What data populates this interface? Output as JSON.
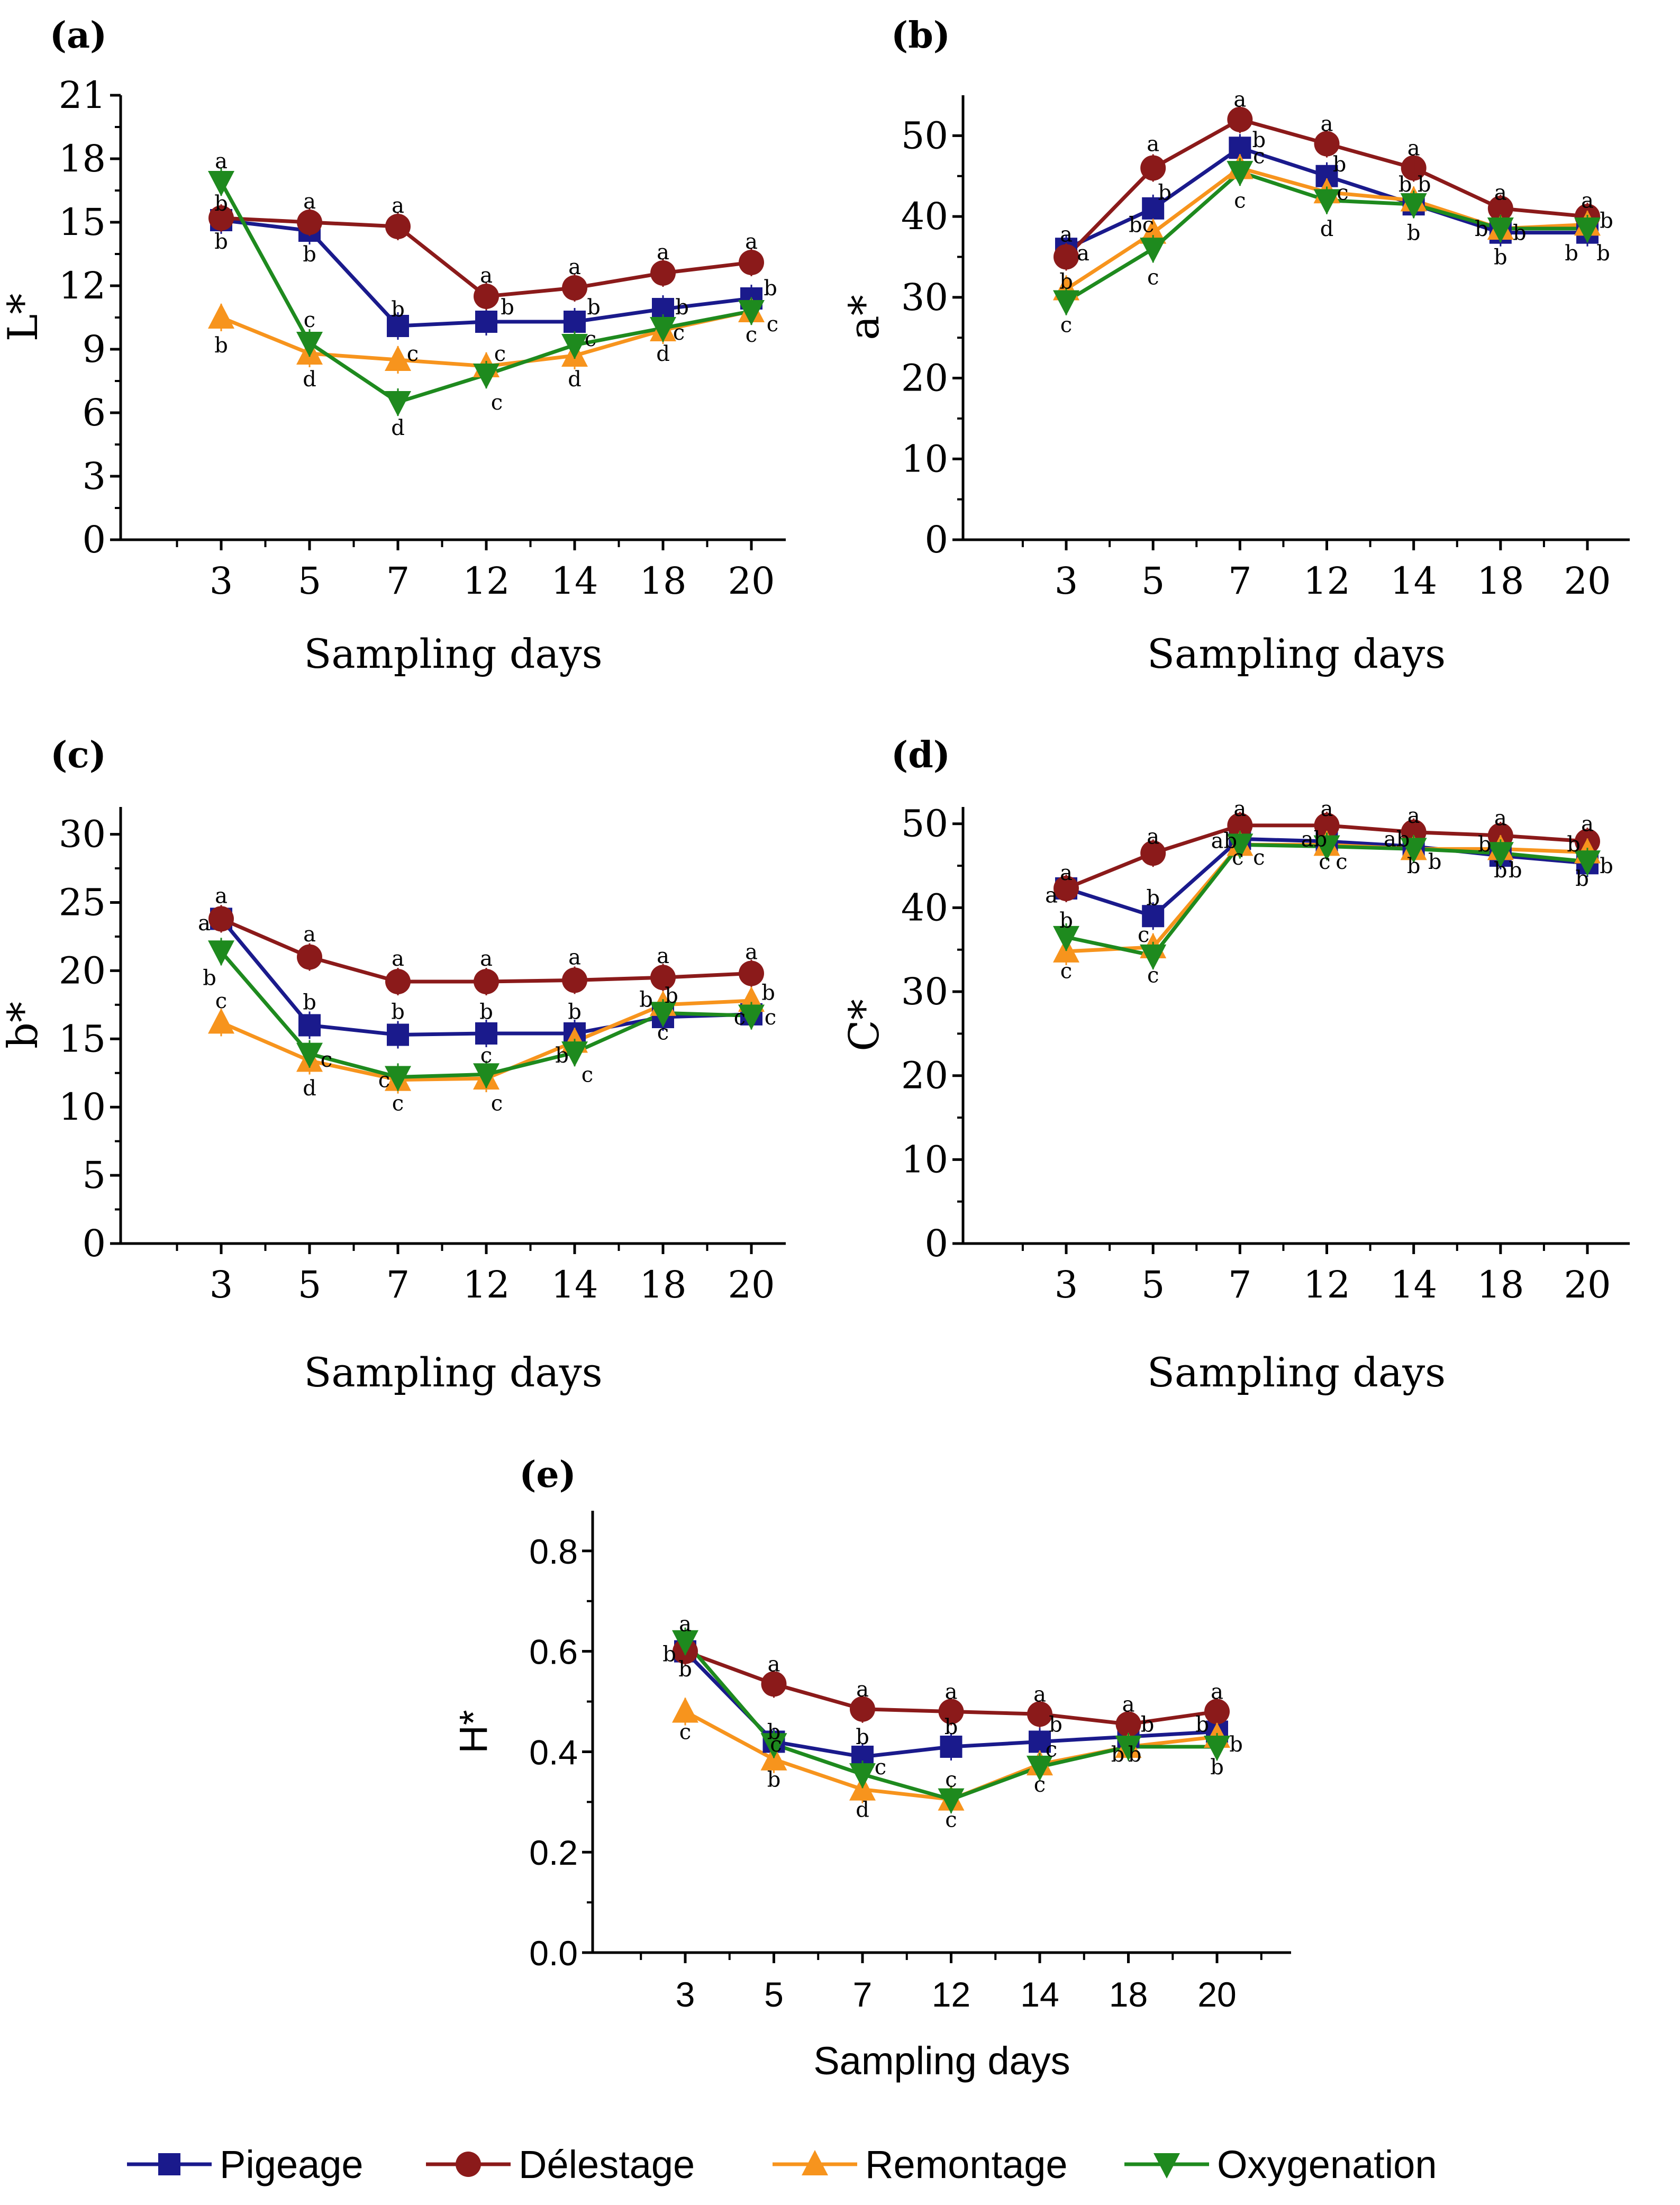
{
  "colors": {
    "Pigeage": "#1a1a8c",
    "Délestage": "#8b1a1a",
    "Remontage": "#f7941d",
    "Oxygenation": "#1e8a1e",
    "axis": "#000000"
  },
  "markers": {
    "Pigeage": "square",
    "Délestage": "circle",
    "Remontage": "triangle-up",
    "Oxygenation": "triangle-down"
  },
  "legend": [
    {
      "name": "Pigeage"
    },
    {
      "name": "Délestage"
    },
    {
      "name": "Remontage"
    },
    {
      "name": "Oxygenation"
    }
  ],
  "chart_data": [
    {
      "type": "line",
      "tag": "(a)",
      "ylabel": "L*",
      "xlabel": "Sampling days",
      "categories": [
        "3",
        "5",
        "7",
        "12",
        "14",
        "18",
        "20"
      ],
      "ylim": [
        0,
        21
      ],
      "yticks": [
        "0",
        "3",
        "6",
        "9",
        "12",
        "15",
        "18",
        "21"
      ],
      "series": [
        {
          "name": "Pigeage",
          "values": [
            15.1,
            14.6,
            10.1,
            10.3,
            10.3,
            10.9,
            11.4
          ]
        },
        {
          "name": "Délestage",
          "values": [
            15.2,
            15.0,
            14.8,
            11.5,
            11.9,
            12.6,
            13.1
          ]
        },
        {
          "name": "Remontage",
          "values": [
            10.5,
            8.8,
            8.5,
            8.2,
            8.7,
            9.9,
            10.8
          ]
        },
        {
          "name": "Oxygenation",
          "values": [
            16.9,
            9.3,
            6.5,
            7.8,
            9.2,
            10.0,
            10.8
          ]
        }
      ],
      "annotations": [
        {
          "text": "a",
          "i": 0,
          "v": 17.9
        },
        {
          "text": "b",
          "i": 0,
          "v": 15.9
        },
        {
          "text": "b",
          "i": 0,
          "v": 14.1
        },
        {
          "text": "b",
          "i": 0,
          "v": 9.2
        },
        {
          "text": "a",
          "i": 1,
          "v": 16.0
        },
        {
          "text": "b",
          "i": 1,
          "v": 13.5
        },
        {
          "text": "c",
          "i": 1,
          "v": 10.4
        },
        {
          "text": "d",
          "i": 1,
          "v": 7.6
        },
        {
          "text": "a",
          "i": 2,
          "v": 15.8
        },
        {
          "text": "b",
          "i": 2,
          "v": 10.9,
          "dx": 0
        },
        {
          "text": "c",
          "i": 2,
          "v": 8.8,
          "dx": 28
        },
        {
          "text": "d",
          "i": 2,
          "v": 5.3
        },
        {
          "text": "a",
          "i": 3,
          "v": 12.5
        },
        {
          "text": "b",
          "i": 3,
          "v": 11.0,
          "dx": 40
        },
        {
          "text": "c",
          "i": 3,
          "v": 8.8,
          "dx": 26
        },
        {
          "text": "c",
          "i": 3,
          "v": 6.5,
          "dx": 20
        },
        {
          "text": "a",
          "i": 4,
          "v": 12.9
        },
        {
          "text": "b",
          "i": 4,
          "v": 11.0,
          "dx": 36
        },
        {
          "text": "c",
          "i": 4,
          "v": 9.5,
          "dx": 30
        },
        {
          "text": "d",
          "i": 4,
          "v": 7.6
        },
        {
          "text": "a",
          "i": 5,
          "v": 13.6
        },
        {
          "text": "b",
          "i": 5,
          "v": 11.0,
          "dx": 36
        },
        {
          "text": "c",
          "i": 5,
          "v": 9.8,
          "dx": 30
        },
        {
          "text": "d",
          "i": 5,
          "v": 8.8
        },
        {
          "text": "a",
          "i": 6,
          "v": 14.1
        },
        {
          "text": "b",
          "i": 6,
          "v": 11.9,
          "dx": 36
        },
        {
          "text": "c",
          "i": 6,
          "v": 10.2,
          "dx": 40
        },
        {
          "text": "c",
          "i": 6,
          "v": 9.7
        }
      ]
    },
    {
      "type": "line",
      "tag": "(b)",
      "ylabel": "a*",
      "xlabel": "Sampling days",
      "categories": [
        "3",
        "5",
        "7",
        "12",
        "14",
        "18",
        "20"
      ],
      "ylim": [
        0,
        55
      ],
      "yticks": [
        "0",
        "10",
        "20",
        "30",
        "40",
        "50"
      ],
      "series": [
        {
          "name": "Pigeage",
          "values": [
            36.0,
            41.0,
            48.5,
            45.0,
            41.5,
            38.0,
            38.0
          ]
        },
        {
          "name": "Délestage",
          "values": [
            35.0,
            46.0,
            52.0,
            49.0,
            46.0,
            41.0,
            40.0
          ]
        },
        {
          "name": "Remontage",
          "values": [
            31.0,
            38.0,
            46.0,
            43.0,
            42.0,
            38.5,
            39.0
          ]
        },
        {
          "name": "Oxygenation",
          "values": [
            29.5,
            36.0,
            45.5,
            42.0,
            41.5,
            38.5,
            38.5
          ]
        }
      ],
      "annotations": [
        {
          "text": "a",
          "i": 0,
          "v": 37.8
        },
        {
          "text": "a",
          "i": 0,
          "v": 35.5,
          "dx": 32
        },
        {
          "text": "b",
          "i": 0,
          "v": 32.0
        },
        {
          "text": "c",
          "i": 0,
          "v": 26.6
        },
        {
          "text": "a",
          "i": 1,
          "v": 49.0
        },
        {
          "text": "b",
          "i": 1,
          "v": 43.0,
          "dx": 22
        },
        {
          "text": "bc",
          "i": 1,
          "v": 39.0,
          "dx": -22
        },
        {
          "text": "c",
          "i": 1,
          "v": 32.5
        },
        {
          "text": "a",
          "i": 2,
          "v": 54.5
        },
        {
          "text": "b",
          "i": 2,
          "v": 49.5,
          "dx": 36
        },
        {
          "text": "c",
          "i": 2,
          "v": 47.5,
          "dx": 36
        },
        {
          "text": "c",
          "i": 2,
          "v": 42.0
        },
        {
          "text": "a",
          "i": 3,
          "v": 51.5
        },
        {
          "text": "b",
          "i": 3,
          "v": 46.5,
          "dx": 24
        },
        {
          "text": "c",
          "i": 3,
          "v": 43.0,
          "dx": 30
        },
        {
          "text": "d",
          "i": 3,
          "v": 38.5
        },
        {
          "text": "a",
          "i": 4,
          "v": 48.5
        },
        {
          "text": "b",
          "i": 4,
          "v": 44.0,
          "dx": -16
        },
        {
          "text": "b",
          "i": 4,
          "v": 44.0,
          "dx": 20
        },
        {
          "text": "b",
          "i": 4,
          "v": 38.0
        },
        {
          "text": "a",
          "i": 5,
          "v": 43.0
        },
        {
          "text": "b",
          "i": 5,
          "v": 38.5,
          "dx": -36
        },
        {
          "text": "b",
          "i": 5,
          "v": 38.0,
          "dx": 36
        },
        {
          "text": "b",
          "i": 5,
          "v": 35.0
        },
        {
          "text": "a",
          "i": 6,
          "v": 42.0
        },
        {
          "text": "b",
          "i": 6,
          "v": 39.5,
          "dx": 36
        },
        {
          "text": "b",
          "i": 6,
          "v": 35.5,
          "dx": -30
        },
        {
          "text": "b",
          "i": 6,
          "v": 35.5,
          "dx": 30
        }
      ]
    },
    {
      "type": "line",
      "tag": "(c)",
      "ylabel": "b*",
      "xlabel": "Sampling days",
      "categories": [
        "3",
        "5",
        "7",
        "12",
        "14",
        "18",
        "20"
      ],
      "ylim": [
        0,
        32
      ],
      "yticks": [
        "0",
        "5",
        "10",
        "15",
        "20",
        "25",
        "30"
      ],
      "series": [
        {
          "name": "Pigeage",
          "values": [
            23.8,
            16.0,
            15.3,
            15.4,
            15.4,
            16.6,
            16.8
          ]
        },
        {
          "name": "Délestage",
          "values": [
            23.8,
            21.0,
            19.2,
            19.2,
            19.3,
            19.5,
            19.8
          ]
        },
        {
          "name": "Remontage",
          "values": [
            16.2,
            13.4,
            12.0,
            12.1,
            14.8,
            17.5,
            17.8
          ]
        },
        {
          "name": "Oxygenation",
          "values": [
            21.4,
            13.9,
            12.2,
            12.4,
            14.0,
            16.9,
            16.7
          ]
        }
      ],
      "annotations": [
        {
          "text": "a",
          "i": 0,
          "v": 25.5
        },
        {
          "text": "a",
          "i": 0,
          "v": 23.5,
          "dx": -32
        },
        {
          "text": "c",
          "i": 0,
          "v": 17.8
        },
        {
          "text": "b",
          "i": 0,
          "v": 19.5,
          "dx": -22
        },
        {
          "text": "a",
          "i": 1,
          "v": 22.7
        },
        {
          "text": "b",
          "i": 1,
          "v": 17.7
        },
        {
          "text": "c",
          "i": 1,
          "v": 13.5,
          "dx": 32
        },
        {
          "text": "d",
          "i": 1,
          "v": 11.4
        },
        {
          "text": "a",
          "i": 2,
          "v": 20.9
        },
        {
          "text": "b",
          "i": 2,
          "v": 17.0
        },
        {
          "text": "c",
          "i": 2,
          "v": 10.3
        },
        {
          "text": "c",
          "i": 2,
          "v": 12.0,
          "dx": -26
        },
        {
          "text": "a",
          "i": 3,
          "v": 20.9
        },
        {
          "text": "b",
          "i": 3,
          "v": 17.0
        },
        {
          "text": "c",
          "i": 3,
          "v": 13.8
        },
        {
          "text": "c",
          "i": 3,
          "v": 10.3,
          "dx": 20
        },
        {
          "text": "a",
          "i": 4,
          "v": 21.0
        },
        {
          "text": "b",
          "i": 4,
          "v": 17.0
        },
        {
          "text": "b",
          "i": 4,
          "v": 13.8,
          "dx": -24
        },
        {
          "text": "c",
          "i": 4,
          "v": 12.4,
          "dx": 24
        },
        {
          "text": "a",
          "i": 5,
          "v": 21.1
        },
        {
          "text": "b",
          "i": 5,
          "v": 17.9,
          "dx": -32
        },
        {
          "text": "b",
          "i": 5,
          "v": 18.2,
          "dx": 16
        },
        {
          "text": "c",
          "i": 5,
          "v": 15.5
        },
        {
          "text": "a",
          "i": 6,
          "v": 21.4
        },
        {
          "text": "b",
          "i": 6,
          "v": 18.4,
          "dx": 32
        },
        {
          "text": "c",
          "i": 6,
          "v": 16.6,
          "dx": -22
        },
        {
          "text": "c",
          "i": 6,
          "v": 16.6,
          "dx": 36
        }
      ]
    },
    {
      "type": "line",
      "tag": "(d)",
      "ylabel": "C*",
      "xlabel": "Sampling days",
      "categories": [
        "3",
        "5",
        "7",
        "12",
        "14",
        "18",
        "20"
      ],
      "ylim": [
        0,
        52
      ],
      "yticks": [
        "0",
        "10",
        "20",
        "30",
        "40",
        "50"
      ],
      "series": [
        {
          "name": "Pigeage",
          "values": [
            42.3,
            39.0,
            48.2,
            47.9,
            47.3,
            46.2,
            45.3
          ]
        },
        {
          "name": "Délestage",
          "values": [
            42.3,
            46.5,
            49.8,
            49.8,
            49.0,
            48.6,
            47.9
          ]
        },
        {
          "name": "Remontage",
          "values": [
            34.8,
            35.3,
            47.5,
            47.5,
            47.0,
            47.0,
            46.6
          ]
        },
        {
          "name": "Oxygenation",
          "values": [
            36.5,
            34.3,
            47.5,
            47.3,
            47.0,
            46.5,
            45.5
          ]
        }
      ],
      "annotations": [
        {
          "text": "a",
          "i": 0,
          "v": 44.2
        },
        {
          "text": "a",
          "i": 0,
          "v": 41.5,
          "dx": -28
        },
        {
          "text": "b",
          "i": 0,
          "v": 38.5
        },
        {
          "text": "c",
          "i": 0,
          "v": 32.5
        },
        {
          "text": "a",
          "i": 1,
          "v": 48.5
        },
        {
          "text": "b",
          "i": 1,
          "v": 41.2
        },
        {
          "text": "c",
          "i": 1,
          "v": 36.8,
          "dx": -18
        },
        {
          "text": "c",
          "i": 1,
          "v": 32.0
        },
        {
          "text": "a",
          "i": 2,
          "v": 51.8
        },
        {
          "text": "ab",
          "i": 2,
          "v": 48.0,
          "dx": -30
        },
        {
          "text": "c",
          "i": 2,
          "v": 46.0,
          "dx": -4
        },
        {
          "text": "c",
          "i": 2,
          "v": 46.0,
          "dx": 36
        },
        {
          "text": "a",
          "i": 3,
          "v": 51.8
        },
        {
          "text": "ab",
          "i": 3,
          "v": 48.2,
          "dx": -24
        },
        {
          "text": "c",
          "i": 3,
          "v": 45.5,
          "dx": -4
        },
        {
          "text": "c",
          "i": 3,
          "v": 45.5,
          "dx": 28
        },
        {
          "text": "a",
          "i": 4,
          "v": 51.0
        },
        {
          "text": "ab",
          "i": 4,
          "v": 48.2,
          "dx": -32
        },
        {
          "text": "b",
          "i": 4,
          "v": 45.0
        },
        {
          "text": "b",
          "i": 4,
          "v": 45.5,
          "dx": 40
        },
        {
          "text": "a",
          "i": 5,
          "v": 50.7
        },
        {
          "text": "b",
          "i": 5,
          "v": 47.6,
          "dx": -30
        },
        {
          "text": "b",
          "i": 5,
          "v": 44.5,
          "dx": 0
        },
        {
          "text": "b",
          "i": 5,
          "v": 44.5,
          "dx": 28
        },
        {
          "text": "a",
          "i": 6,
          "v": 50.0
        },
        {
          "text": "b",
          "i": 6,
          "v": 47.6,
          "dx": -26
        },
        {
          "text": "b",
          "i": 6,
          "v": 43.5,
          "dx": -10
        },
        {
          "text": "b",
          "i": 6,
          "v": 45.0,
          "dx": 36
        }
      ]
    },
    {
      "type": "line",
      "tag": "(e)",
      "ylabel": "H*",
      "xlabel": "Sampling days",
      "categories": [
        "3",
        "5",
        "7",
        "12",
        "14",
        "18",
        "20"
      ],
      "ylim": [
        0,
        0.88
      ],
      "yticks": [
        "0.0",
        "0.2",
        "0.4",
        "0.6",
        "0.8"
      ],
      "series": [
        {
          "name": "Pigeage",
          "values": [
            0.6,
            0.42,
            0.39,
            0.41,
            0.42,
            0.43,
            0.44
          ]
        },
        {
          "name": "Délestage",
          "values": [
            0.6,
            0.535,
            0.485,
            0.48,
            0.475,
            0.455,
            0.48
          ]
        },
        {
          "name": "Remontage",
          "values": [
            0.48,
            0.385,
            0.325,
            0.305,
            0.375,
            0.41,
            0.43
          ]
        },
        {
          "name": "Oxygenation",
          "values": [
            0.62,
            0.415,
            0.355,
            0.305,
            0.37,
            0.41,
            0.41
          ]
        }
      ],
      "annotations": [
        {
          "text": "a",
          "i": 0,
          "v": 0.655
        },
        {
          "text": "b",
          "i": 0,
          "v": 0.595,
          "dx": -30
        },
        {
          "text": "b",
          "i": 0,
          "v": 0.565
        },
        {
          "text": "c",
          "i": 0,
          "v": 0.44
        },
        {
          "text": "a",
          "i": 1,
          "v": 0.575
        },
        {
          "text": "b",
          "i": 1,
          "v": 0.44
        },
        {
          "text": "c",
          "i": 1,
          "v": 0.415,
          "dx": 4
        },
        {
          "text": "b",
          "i": 1,
          "v": 0.345
        },
        {
          "text": "a",
          "i": 2,
          "v": 0.525
        },
        {
          "text": "b",
          "i": 2,
          "v": 0.43
        },
        {
          "text": "c",
          "i": 2,
          "v": 0.37,
          "dx": 34
        },
        {
          "text": "d",
          "i": 2,
          "v": 0.285
        },
        {
          "text": "a",
          "i": 3,
          "v": 0.52
        },
        {
          "text": "b",
          "i": 3,
          "v": 0.45
        },
        {
          "text": "c",
          "i": 3,
          "v": 0.345
        },
        {
          "text": "c",
          "i": 3,
          "v": 0.265
        },
        {
          "text": "a",
          "i": 4,
          "v": 0.515
        },
        {
          "text": "b",
          "i": 4,
          "v": 0.455,
          "dx": 30
        },
        {
          "text": "c",
          "i": 4,
          "v": 0.405,
          "dx": 22
        },
        {
          "text": "c",
          "i": 4,
          "v": 0.335
        },
        {
          "text": "a",
          "i": 5,
          "v": 0.495
        },
        {
          "text": "b",
          "i": 5,
          "v": 0.455,
          "dx": 36
        },
        {
          "text": "b",
          "i": 5,
          "v": 0.395,
          "dx": -20
        },
        {
          "text": "b",
          "i": 5,
          "v": 0.395,
          "dx": 12
        },
        {
          "text": "a",
          "i": 6,
          "v": 0.52
        },
        {
          "text": "b",
          "i": 6,
          "v": 0.455,
          "dx": -28
        },
        {
          "text": "b",
          "i": 6,
          "v": 0.415,
          "dx": 36
        },
        {
          "text": "b",
          "i": 6,
          "v": 0.37
        }
      ]
    }
  ]
}
